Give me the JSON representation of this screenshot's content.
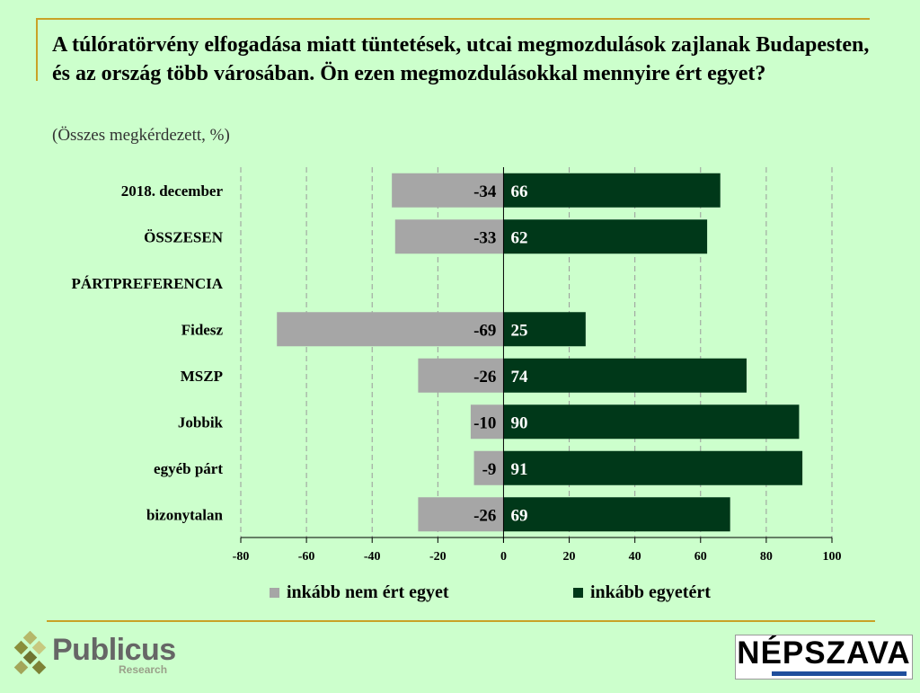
{
  "title": "A túlóratörvény elfogadása miatt tüntetések, utcai megmozdulások zajlanak Budapesten, és az ország több városában. Ön ezen megmozdulásokkal mennyire ért egyet?",
  "subtitle": "(Összes megkérdezett, %)",
  "colors": {
    "background": "#ccffcc",
    "negative": "#a6a6a6",
    "positive": "#003819",
    "rule": "#c9a227"
  },
  "chart_data": {
    "type": "bar",
    "orientation": "horizontal-diverging",
    "categories": [
      "2018. december",
      "ÖSSZESEN",
      "PÁRTPREFERENCIA",
      "Fidesz",
      "MSZP",
      "Jobbik",
      "egyéb párt",
      "bizonytalan"
    ],
    "series": [
      {
        "name": "inkább nem ért egyet",
        "values": [
          -34,
          -33,
          null,
          -69,
          -26,
          -10,
          -9,
          -26
        ]
      },
      {
        "name": "inkább egyetért",
        "values": [
          66,
          62,
          null,
          25,
          74,
          90,
          91,
          69
        ]
      }
    ],
    "xlim": [
      -80,
      100
    ],
    "xticks": [
      -80,
      -60,
      -40,
      -20,
      0,
      20,
      40,
      60,
      80,
      100
    ],
    "grid": true,
    "legend_position": "bottom"
  },
  "legend": {
    "items": [
      {
        "label": "inkább nem ért egyet",
        "color": "#a6a6a6"
      },
      {
        "label": "inkább egyetért",
        "color": "#003819"
      }
    ]
  },
  "logos": {
    "publicus_name": "Publicus",
    "publicus_sub": "Research",
    "nepszava_name": "NÉPSZAVA"
  }
}
